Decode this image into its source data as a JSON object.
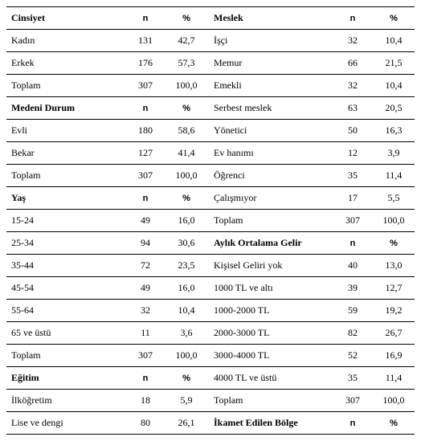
{
  "headers": {
    "n": "n",
    "pct": "%"
  },
  "sections": {
    "gender": {
      "title": "Cinsiyet",
      "rows": [
        {
          "label": "Kadın",
          "n": "131",
          "pct": "42,7"
        },
        {
          "label": "Erkek",
          "n": "176",
          "pct": "57,3"
        },
        {
          "label": "Toplam",
          "n": "307",
          "pct": "100,0"
        }
      ]
    },
    "marital": {
      "title": "Medeni Durum",
      "rows": [
        {
          "label": "Evli",
          "n": "180",
          "pct": "58,6"
        },
        {
          "label": "Bekar",
          "n": "127",
          "pct": "41,4"
        },
        {
          "label": "Toplam",
          "n": "307",
          "pct": "100,0"
        }
      ]
    },
    "age": {
      "title": "Yaş",
      "rows": [
        {
          "label": " 15-24",
          "n": "49",
          "pct": "16,0"
        },
        {
          "label": "25-34",
          "n": "94",
          "pct": "30,6"
        },
        {
          "label": "35-44",
          "n": "72",
          "pct": "23,5"
        },
        {
          "label": "45-54",
          "n": "49",
          "pct": "16,0"
        },
        {
          "label": "55-64",
          "n": "32",
          "pct": "10,4"
        },
        {
          "label": "65 ve üstü",
          "n": "11",
          "pct": "3,6"
        },
        {
          "label": "Toplam",
          "n": "307",
          "pct": "100,0"
        }
      ]
    },
    "education": {
      "title": "Eğitim",
      "rows": [
        {
          "label": "İlköğretim",
          "n": "18",
          "pct": "5,9"
        },
        {
          "label": "Lise ve dengi",
          "n": "80",
          "pct": "26,1"
        }
      ]
    },
    "occupation": {
      "title": "Meslek",
      "rows": [
        {
          "label": "İşçi",
          "n": "32",
          "pct": "10,4"
        },
        {
          "label": "Memur",
          "n": "66",
          "pct": "21,5"
        },
        {
          "label": "Emekli",
          "n": "32",
          "pct": "10,4"
        },
        {
          "label": "Serbest meslek",
          "n": "63",
          "pct": "20,5"
        },
        {
          "label": "Yönetici",
          "n": "50",
          "pct": "16,3"
        },
        {
          "label": "Ev hanımı",
          "n": "12",
          "pct": "3,9"
        },
        {
          "label": "Öğrenci",
          "n": "35",
          "pct": "11,4"
        },
        {
          "label": "Çalışmıyor",
          "n": "17",
          "pct": "5,5"
        },
        {
          "label": "Toplam",
          "n": "307",
          "pct": "100,0"
        }
      ]
    },
    "income": {
      "title": "Aylık Ortalama Gelir",
      "rows": [
        {
          "label": "Kişisel Geliri yok",
          "n": "40",
          "pct": "13,0"
        },
        {
          "label": "1000 TL ve altı",
          "n": "39",
          "pct": "12,7"
        },
        {
          "label": "1000-2000 TL",
          "n": "59",
          "pct": "19,2"
        },
        {
          "label": "2000-3000 TL",
          "n": "82",
          "pct": "26,7"
        },
        {
          "label": "3000-4000 TL",
          "n": "52",
          "pct": "16,9"
        },
        {
          "label": "4000 TL ve üstü",
          "n": "35",
          "pct": "11,4"
        },
        {
          "label": "Toplam",
          "n": "307",
          "pct": "100,0"
        }
      ]
    },
    "region": {
      "title": "İkamet Edilen Bölge"
    }
  }
}
